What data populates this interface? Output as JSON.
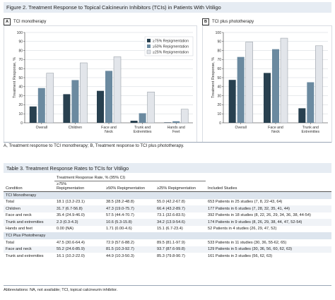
{
  "figure_title": "Figure 2. Treatment Response to Topical Calcineurin Inhibitors (TCIs) in Patients With Vitiligo",
  "colors": {
    "s75": "#28404f",
    "s50": "#6b8aa0",
    "s25": "#e2e5ea",
    "header_bg": "#e6ecf3",
    "section_bg": "#dde5ee"
  },
  "chart_data": [
    {
      "type": "bar",
      "panel_letter": "A",
      "title": "TCI monotherapy",
      "ylabel": "Treatment Response, %",
      "xlabel": "",
      "ylim": [
        0,
        100
      ],
      "yticks": [
        "0",
        "10",
        "20",
        "30",
        "40",
        "50",
        "60",
        "70",
        "80",
        "90",
        "100"
      ],
      "grid": true,
      "legend_position": "top-right",
      "categories": [
        "Overall",
        "Children",
        "Face and Neck",
        "Trunk and Extremities",
        "Hands and Feet"
      ],
      "category_lines": [
        [
          "Overall"
        ],
        [
          "Children"
        ],
        [
          "Face and",
          "Neck"
        ],
        [
          "Trunk and",
          "Extremities"
        ],
        [
          "Hands and",
          "Feet"
        ]
      ],
      "series": [
        {
          "name": "≥75% Repigmentation",
          "values": [
            18.1,
            31.7,
            35.4,
            2.3,
            0
          ]
        },
        {
          "name": "≥50% Repigmentation",
          "values": [
            38.5,
            47.3,
            57.5,
            10.6,
            1.71
          ]
        },
        {
          "name": "≥25% Repigmentation",
          "values": [
            55.0,
            66.4,
            73.1,
            34.2,
            15.1
          ]
        }
      ]
    },
    {
      "type": "bar",
      "panel_letter": "B",
      "title": "TCI plus phototherapy",
      "ylabel": "Treatment Response, %",
      "xlabel": "",
      "ylim": [
        0,
        100
      ],
      "yticks": [
        "0",
        "10",
        "20",
        "30",
        "40",
        "50",
        "60",
        "70",
        "80",
        "90",
        "100"
      ],
      "grid": true,
      "categories": [
        "Overall",
        "Face and Neck",
        "Trunk and Extremities"
      ],
      "category_lines": [
        [
          "Overall"
        ],
        [
          "Face and",
          "Neck"
        ],
        [
          "Trunk and",
          "Extremities"
        ]
      ],
      "series": [
        {
          "values": [
            47.5,
            55.2,
            16.1
          ]
        },
        {
          "values": [
            72.9,
            81.5,
            44.9
          ]
        },
        {
          "values": [
            89.5,
            93.7,
            85.3
          ]
        }
      ]
    }
  ],
  "caption": "A, Treatment response to TCI monotherapy; B, Treatment response to TCI plus phototherapy.",
  "table": {
    "title": "Table 3. Treatment Response Rates to TCIs for Vitiligo",
    "group_header": "Treatment Response Rate, % (95% CI)",
    "headers": {
      "condition": "Condition",
      "c75_line1": "≥75%",
      "c75_line2": "Repigmentation",
      "c50": "≥50% Repigmentation",
      "c25": "≥25% Repigmentation",
      "studies": "Included Studies"
    },
    "sections": [
      {
        "title": "TCI Monotherapy",
        "rows": [
          [
            "Total",
            "18.1 (13.2-23.1)",
            "38.5 (28.2-48.8)",
            "55.0 (42.2-67.8)",
            "653 Patients in 25 studies (7, 8, 22-43, 64)"
          ],
          [
            "Children",
            "31.7 (6.7-56.8)",
            "47.3 (19.0-75.7)",
            "66.4 (43.2-89.7)",
            "177 Patients in 6 studies (7, 28, 32, 35, 41, 44)"
          ],
          [
            "Face and neck",
            "35.4 (24.9-46.0)",
            "57.5 (44.4-70.7)",
            "73.1 (32.6-83.5)",
            "392 Patients in 18 studies (8, 22, 26, 29, 34, 36, 38, 44-54)"
          ],
          [
            "Trunk and extremities",
            "2.3 (0.3-4.3)",
            "10.6 (5.3-15.8)",
            "34.2 (13.9-54.6)",
            "174 Patients in 9 studies (8, 26, 29, 38, 44, 47, 52-54)"
          ],
          [
            "Hands and feet",
            "0.00 (NA)",
            "1.71 (0.00-4.6)",
            "15.1 (6.7-23.4)",
            "52 Patients in 4 studies (26, 29, 47, 52)"
          ]
        ]
      },
      {
        "title": "TCI Plus Phototherapy",
        "rows": [
          [
            "Total",
            "47.5 (30.6-64.4)",
            "72.9 (57.6-88.2)",
            "89.5 (81.1-97.9)",
            "533 Patients in 11 studies (30, 36, 55-62, 65)"
          ],
          [
            "Face and neck",
            "55.2 (24.6-85.9)",
            "81.5 (10.3-92.7)",
            "93.7 (87.6-99.8)",
            "129 Patients in 5 studies (30, 36, 56, 60, 62, 63)"
          ],
          [
            "Trunk and extremities",
            "16.1 (10.2-22.0)",
            "44.9 (10.3-50.3)",
            "85.3 (79.8-90.7)",
            "161 Patients in 3 studies (56, 62, 63)"
          ]
        ]
      }
    ],
    "abbreviations": "Abbreviations: NA, not available; TCI, topical calcineurin inhibitor."
  }
}
